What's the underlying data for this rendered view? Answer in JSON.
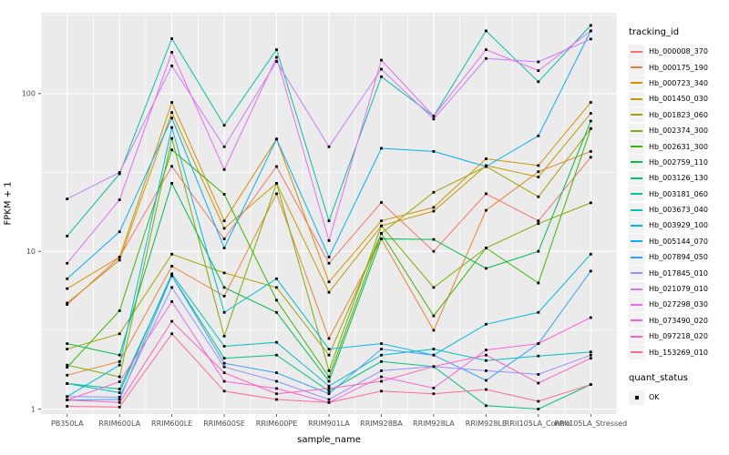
{
  "chart_data": {
    "type": "line",
    "x_title": "sample_name",
    "y_title": "FPKM + 1",
    "y_scale": "log10",
    "y_ticks": [
      1,
      10,
      100
    ],
    "y_tick_labels": [
      "1",
      "10",
      "100"
    ],
    "y_minor_ticks": [
      3.162,
      31.62,
      316.2
    ],
    "panel_color": "#EBEBEB",
    "grid_color": "#FFFFFF",
    "tick_text_color": "#4D4D4D",
    "point_marker": "black-square",
    "categories": [
      "PB350LA",
      "RRIM600LA",
      "RRIM600LE",
      "RRIM600SE",
      "RRIM600PE",
      "RRIM901LA",
      "RRIM928BA",
      "RRIM928LA",
      "RRIM928LE",
      "RRII105LA_Control",
      "RRII105LA_Stressed"
    ],
    "series": [
      {
        "name": "Hb_000008_370",
        "color": "#F8766D",
        "values": [
          4.6,
          9.2,
          34.6,
          12,
          34.5,
          8.4,
          20.4,
          10,
          23.2,
          15.6,
          39.5
        ]
      },
      {
        "name": "Hb_000175_190",
        "color": "#EA8331",
        "values": [
          1.64,
          2.0,
          8.05,
          5.2,
          23.2,
          2.8,
          12,
          3.16,
          18.2,
          32,
          43
        ]
      },
      {
        "name": "Hb_000723_340",
        "color": "#D89000",
        "values": [
          5.8,
          9.2,
          88,
          15.6,
          51.5,
          6.4,
          15.6,
          19,
          38.6,
          35,
          88
        ]
      },
      {
        "name": "Hb_001450_030",
        "color": "#C09B00",
        "values": [
          4.7,
          8.8,
          76,
          14,
          27,
          5.5,
          14.5,
          18,
          35,
          29.6,
          75
        ]
      },
      {
        "name": "Hb_001823_060",
        "color": "#A3A500",
        "values": [
          2.4,
          3.0,
          9.6,
          7.3,
          5.9,
          2.2,
          13,
          23.7,
          34.5,
          22.2,
          60
        ]
      },
      {
        "name": "Hb_002374_300",
        "color": "#7CAE00",
        "values": [
          1.9,
          1.6,
          52,
          2.9,
          27,
          1.75,
          14.5,
          5.9,
          10.5,
          15,
          20.3
        ]
      },
      {
        "name": "Hb_002631_300",
        "color": "#39B600",
        "values": [
          1.84,
          4.2,
          44,
          23,
          4.9,
          1.6,
          13,
          3.9,
          10.5,
          6.3,
          60
        ]
      },
      {
        "name": "Hb_002759_110",
        "color": "#00BB4E",
        "values": [
          2.6,
          2.2,
          27,
          5.9,
          4.1,
          1.5,
          12,
          11.9,
          7.8,
          10,
          67
        ]
      },
      {
        "name": "Hb_003126_130",
        "color": "#00BF7D",
        "values": [
          1.45,
          1.34,
          7.0,
          2.1,
          2.2,
          1.3,
          2.0,
          1.86,
          1.05,
          1.0,
          1.43
        ]
      },
      {
        "name": "Hb_003181_060",
        "color": "#00C1A3",
        "values": [
          12.5,
          31,
          223,
          63,
          190,
          15.6,
          128,
          72,
          250,
          119,
          271
        ]
      },
      {
        "name": "Hb_003673_040",
        "color": "#00BFC4",
        "values": [
          1.45,
          1.27,
          7.2,
          2.5,
          2.65,
          1.4,
          2.2,
          2.4,
          2.03,
          2.17,
          2.3
        ]
      },
      {
        "name": "Hb_003929_100",
        "color": "#00BAE0",
        "values": [
          1.2,
          1.9,
          61,
          4.1,
          6.7,
          2.4,
          2.6,
          2.2,
          3.45,
          4.1,
          9.6
        ]
      },
      {
        "name": "Hb_005144_070",
        "color": "#00B0F6",
        "values": [
          6.7,
          13.3,
          70,
          10.5,
          51.5,
          9.2,
          45,
          43,
          34.5,
          54,
          250
        ]
      },
      {
        "name": "Hb_007894_050",
        "color": "#35A2FF",
        "values": [
          1.14,
          1.15,
          7.0,
          1.95,
          1.7,
          1.25,
          2.4,
          2.2,
          1.52,
          2.6,
          7.5
        ]
      },
      {
        "name": "Hb_017845_010",
        "color": "#9590FF",
        "values": [
          1.2,
          1.19,
          5.9,
          1.85,
          1.5,
          1.15,
          1.75,
          1.86,
          1.75,
          1.66,
          2.2
        ]
      },
      {
        "name": "Hb_021079_010",
        "color": "#C77CFF",
        "values": [
          21.5,
          31.6,
          150,
          46,
          160,
          46,
          143,
          69,
          167,
          159,
          222
        ]
      },
      {
        "name": "Hb_027298_030",
        "color": "#E76BF3",
        "values": [
          8.4,
          21.2,
          183,
          33,
          170,
          11.7,
          163,
          72,
          190,
          140,
          250
        ]
      },
      {
        "name": "Hb_073490_020",
        "color": "#FA62DB",
        "values": [
          1.14,
          1.49,
          4.8,
          1.5,
          1.35,
          1.1,
          1.6,
          1.36,
          2.37,
          2.6,
          3.8
        ]
      },
      {
        "name": "Hb_097218_020",
        "color": "#FF62BC",
        "values": [
          1.14,
          1.1,
          3.6,
          1.7,
          1.25,
          1.35,
          1.5,
          1.86,
          2.2,
          1.46,
          2.1
        ]
      },
      {
        "name": "Hb_153269_010",
        "color": "#FF6A98",
        "values": [
          1.04,
          1.03,
          3.0,
          1.3,
          1.15,
          1.1,
          1.3,
          1.25,
          1.33,
          1.12,
          1.43
        ]
      }
    ]
  },
  "legend": {
    "title": "tracking_id"
  },
  "legend2": {
    "title": "quant_status",
    "items": [
      {
        "label": "OK"
      }
    ]
  }
}
